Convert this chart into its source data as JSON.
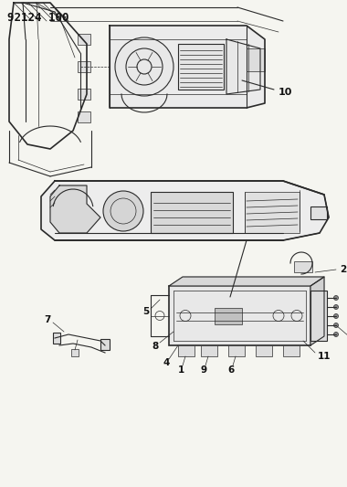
{
  "title": "92124 100",
  "bg_color": "#f5f5f0",
  "line_color": "#2a2a2a",
  "label_color": "#111111",
  "fig_width": 3.8,
  "fig_height": 5.33,
  "dpi": 100,
  "title_fontsize": 9,
  "label_fontsize": 7.5
}
